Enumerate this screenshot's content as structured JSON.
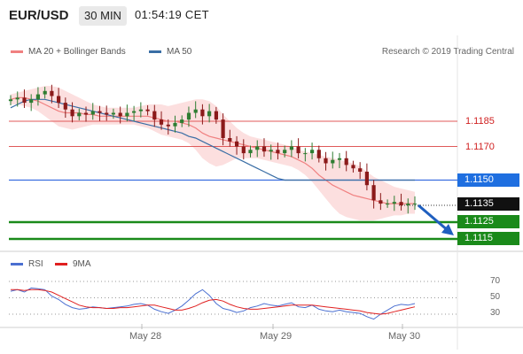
{
  "header": {
    "symbol": "EUR/USD",
    "timeframe": "30 MIN",
    "time": "01:54:19 CET"
  },
  "legend": {
    "ma20_label": "MA 20 + Bollinger Bands",
    "ma50_label": "MA 50",
    "credit": "Research © 2019 Trading Central",
    "ma20_color": "#f08080",
    "ma50_color": "#3a6ea5"
  },
  "levels": [
    {
      "value": "1.1185",
      "style": "line-red"
    },
    {
      "value": "1.1170",
      "style": "line-red"
    },
    {
      "value": "1.1150",
      "style": "box-blue"
    },
    {
      "value": "1.1135",
      "style": "box-black"
    },
    {
      "value": "1.1125",
      "style": "box-green"
    },
    {
      "value": "1.1115",
      "style": "box-green"
    }
  ],
  "rsi_legend": {
    "rsi_label": "RSI",
    "ma_label": "9MA",
    "rsi_color": "#4a6fd1",
    "ma_color": "#e02020"
  },
  "rsi_axis": [
    "70",
    "50",
    "30"
  ],
  "x_axis": [
    "May 28",
    "May 29",
    "May 30"
  ],
  "chart_data": {
    "type": "candlestick",
    "series": [
      {
        "name": "EUR/USD",
        "close": [
          1.1198,
          1.1199,
          1.1196,
          1.1198,
          1.1201,
          1.1203,
          1.12,
          1.1196,
          1.1192,
          1.1188,
          1.119,
          1.1189,
          1.1191,
          1.119,
          1.1189,
          1.119,
          1.1188,
          1.119,
          1.1191,
          1.1192,
          1.1191,
          1.1186,
          1.1183,
          1.1182,
          1.1184,
          1.1186,
          1.119,
          1.1192,
          1.1188,
          1.1191,
          1.1186,
          1.1175,
          1.1173,
          1.117,
          1.1166,
          1.1168,
          1.117,
          1.1167,
          1.1168,
          1.1166,
          1.1168,
          1.117,
          1.1166,
          1.1166,
          1.1168,
          1.1163,
          1.116,
          1.1162,
          1.1163,
          1.1159,
          1.1157,
          1.1155,
          1.1147,
          1.1138,
          1.1136,
          1.1136,
          1.1137,
          1.1135,
          1.1136,
          1.1136
        ]
      },
      {
        "name": "MA 20",
        "values": [
          1.1198,
          1.1199,
          1.1199,
          1.1198,
          1.1197,
          1.1195,
          1.1193,
          1.1191,
          1.119,
          1.119,
          1.119,
          1.1189,
          1.1189,
          1.1188,
          1.1188,
          1.1188,
          1.1188,
          1.1188,
          1.1188,
          1.1188,
          1.1188,
          1.1187,
          1.1186,
          1.1185,
          1.1185,
          1.1184,
          1.1183,
          1.1181,
          1.1178,
          1.1176,
          1.1175,
          1.1174,
          1.1173,
          1.1172,
          1.1171,
          1.117,
          1.1169,
          1.1168,
          1.1167,
          1.1166,
          1.1165,
          1.1164,
          1.1162,
          1.116,
          1.1157,
          1.1153,
          1.115,
          1.1147,
          1.1145,
          1.1143,
          1.1141,
          1.114,
          1.1139,
          1.1138,
          1.1137,
          1.1136,
          1.1136,
          1.1136,
          1.1136,
          1.1136
        ]
      },
      {
        "name": "MA 50",
        "values": [
          1.1193,
          1.1195,
          1.1197,
          1.1198,
          1.1198,
          1.1198,
          1.1197,
          1.1196,
          1.1195,
          1.1194,
          1.1193,
          1.1192,
          1.1191,
          1.119,
          1.1189,
          1.1188,
          1.1187,
          1.1186,
          1.1185,
          1.1184,
          1.1183,
          1.1182,
          1.1181,
          1.118,
          1.1179,
          1.1178,
          1.1176,
          1.1175,
          1.1173,
          1.1171,
          1.1169,
          1.1167,
          1.1165,
          1.1163,
          1.1161,
          1.1159,
          1.1157,
          1.1155,
          1.1153,
          1.1151,
          1.115,
          1.115,
          1.115,
          1.115,
          1.115,
          1.115,
          1.115,
          1.115,
          1.115,
          1.115,
          1.115,
          1.115,
          1.115,
          1.115,
          1.115,
          1.115,
          1.115,
          1.115,
          1.115,
          1.115
        ]
      },
      {
        "name": "RSI",
        "values": [
          58,
          60,
          57,
          62,
          61,
          60,
          52,
          48,
          42,
          38,
          36,
          37,
          39,
          38,
          37,
          38,
          39,
          40,
          42,
          43,
          41,
          36,
          33,
          31,
          35,
          40,
          47,
          55,
          60,
          53,
          43,
          37,
          35,
          32,
          34,
          38,
          40,
          43,
          41,
          40,
          42,
          44,
          39,
          38,
          41,
          36,
          34,
          33,
          35,
          33,
          32,
          31,
          27,
          24,
          30,
          35,
          40,
          42,
          41,
          43
        ]
      },
      {
        "name": "9MA",
        "values": [
          60,
          60,
          59,
          60,
          60,
          59,
          57,
          53,
          49,
          45,
          41,
          39,
          38,
          38,
          37,
          37,
          38,
          38,
          39,
          40,
          41,
          41,
          39,
          37,
          35,
          35,
          37,
          40,
          44,
          47,
          48,
          46,
          42,
          39,
          37,
          36,
          36,
          37,
          38,
          39,
          40,
          41,
          41,
          41,
          41,
          40,
          39,
          38,
          37,
          36,
          35,
          34,
          32,
          31,
          30,
          31,
          33,
          35,
          37,
          39
        ]
      }
    ],
    "bollinger": {
      "upper": [
        1.1201,
        1.1202,
        1.1203,
        1.1204,
        1.1205,
        1.1206,
        1.1206,
        1.1205,
        1.1203,
        1.1201,
        1.1199,
        1.1197,
        1.1195,
        1.1194,
        1.1193,
        1.1193,
        1.1193,
        1.1193,
        1.1193,
        1.1194,
        1.1195,
        1.1195,
        1.1195,
        1.1194,
        1.1195,
        1.1196,
        1.1197,
        1.1198,
        1.1198,
        1.1197,
        1.1194,
        1.1189,
        1.1185,
        1.1181,
        1.1178,
        1.1176,
        1.1175,
        1.1174,
        1.1173,
        1.1172,
        1.1171,
        1.117,
        1.1168,
        1.1167,
        1.1166,
        1.1165,
        1.1164,
        1.1163,
        1.1162,
        1.1161,
        1.116,
        1.1158,
        1.1155,
        1.1152,
        1.115,
        1.1148,
        1.1146,
        1.1145,
        1.1144,
        1.1143
      ],
      "lower": [
        1.1195,
        1.1195,
        1.1194,
        1.1193,
        1.1191,
        1.1188,
        1.1185,
        1.1182,
        1.1181,
        1.118,
        1.1181,
        1.1182,
        1.1183,
        1.1183,
        1.1183,
        1.1183,
        1.1183,
        1.1183,
        1.1183,
        1.1182,
        1.1181,
        1.1179,
        1.1177,
        1.1176,
        1.1175,
        1.1174,
        1.1172,
        1.1168,
        1.1163,
        1.116,
        1.1158,
        1.1159,
        1.1161,
        1.1163,
        1.1163,
        1.1163,
        1.1163,
        1.1162,
        1.1161,
        1.116,
        1.1159,
        1.1158,
        1.1156,
        1.1153,
        1.1149,
        1.1144,
        1.1139,
        1.1134,
        1.113,
        1.1128,
        1.1127,
        1.1126,
        1.1126,
        1.1126,
        1.1127,
        1.1128,
        1.1129,
        1.1129,
        1.113,
        1.113
      ]
    },
    "levels": [
      1.1185,
      1.117,
      1.115,
      1.1135,
      1.1125,
      1.1115
    ],
    "x_ticks": [
      "May 28",
      "May 29",
      "May 30"
    ],
    "rsi_ticks": [
      70,
      50,
      30
    ],
    "rsi_range": [
      20,
      80
    ],
    "forecast_arrow": {
      "from": 1.1135,
      "to": 1.1115
    }
  }
}
